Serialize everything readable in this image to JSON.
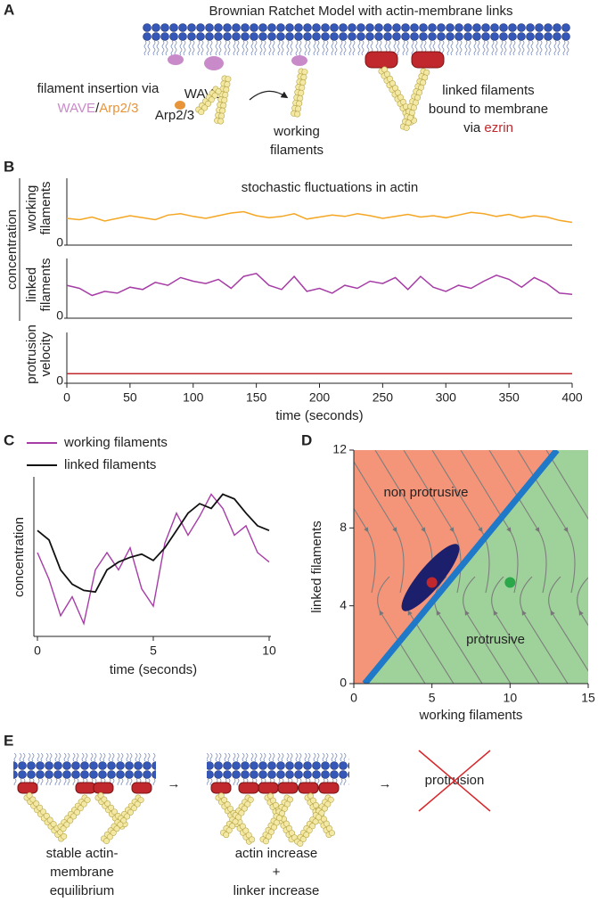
{
  "panel_labels": [
    "A",
    "B",
    "C",
    "D",
    "E"
  ],
  "panel_a": {
    "title": "Brownian Ratchet Model with actin-membrane links",
    "insertion_text": "filament insertion via",
    "insertion_wave": "WAVE",
    "insertion_sep": "/",
    "insertion_arp": "Arp2/3",
    "wave_label": "WAVE",
    "arp_label": "Arp2/3",
    "working_label": [
      "working",
      "filaments"
    ],
    "linked_label": [
      "linked filaments",
      "bound to membrane",
      "via"
    ],
    "ezrin": "ezrin"
  },
  "panel_b": {
    "title": "stochastic fluctuations in actin",
    "y_group_label": "concentration"
  },
  "chart_data": [
    {
      "type": "line",
      "ylabel": [
        "working",
        "filaments"
      ],
      "ylim": [
        0,
        1
      ],
      "yticks": [
        0
      ],
      "xlim": [
        0,
        400
      ],
      "x": [
        0,
        10,
        20,
        30,
        40,
        50,
        60,
        70,
        80,
        90,
        100,
        110,
        120,
        130,
        140,
        150,
        160,
        170,
        180,
        190,
        200,
        210,
        220,
        230,
        240,
        250,
        260,
        270,
        280,
        290,
        300,
        310,
        320,
        330,
        340,
        350,
        360,
        370,
        380,
        390,
        400
      ],
      "series": [
        {
          "color": "#f5a623",
          "values": [
            0.4,
            0.38,
            0.42,
            0.36,
            0.4,
            0.44,
            0.41,
            0.38,
            0.45,
            0.47,
            0.43,
            0.4,
            0.44,
            0.48,
            0.5,
            0.44,
            0.41,
            0.43,
            0.47,
            0.39,
            0.42,
            0.45,
            0.43,
            0.47,
            0.44,
            0.4,
            0.43,
            0.46,
            0.42,
            0.44,
            0.41,
            0.45,
            0.49,
            0.47,
            0.43,
            0.46,
            0.41,
            0.44,
            0.42,
            0.37,
            0.34
          ]
        }
      ]
    },
    {
      "type": "line",
      "ylabel": [
        "linked",
        "filaments"
      ],
      "ylim": [
        0,
        1
      ],
      "yticks": [
        0
      ],
      "xlim": [
        0,
        400
      ],
      "x": [
        0,
        10,
        20,
        30,
        40,
        50,
        60,
        70,
        80,
        90,
        100,
        110,
        120,
        130,
        140,
        150,
        160,
        170,
        180,
        190,
        200,
        210,
        220,
        230,
        240,
        250,
        260,
        270,
        280,
        290,
        300,
        310,
        320,
        330,
        340,
        350,
        360,
        370,
        380,
        390,
        400
      ],
      "series": [
        {
          "color": "#a63ca6",
          "values": [
            0.55,
            0.5,
            0.38,
            0.45,
            0.42,
            0.52,
            0.48,
            0.6,
            0.55,
            0.68,
            0.62,
            0.58,
            0.65,
            0.5,
            0.7,
            0.75,
            0.55,
            0.48,
            0.7,
            0.45,
            0.5,
            0.42,
            0.55,
            0.5,
            0.62,
            0.58,
            0.68,
            0.48,
            0.7,
            0.52,
            0.45,
            0.55,
            0.5,
            0.62,
            0.72,
            0.65,
            0.52,
            0.68,
            0.58,
            0.42,
            0.4
          ]
        }
      ]
    },
    {
      "type": "line",
      "ylabel": [
        "protrusion",
        "velocity"
      ],
      "ylim": [
        0,
        1
      ],
      "yticks": [
        0
      ],
      "xlim": [
        0,
        400
      ],
      "xticks": [
        0,
        50,
        100,
        150,
        200,
        250,
        300,
        350,
        400
      ],
      "xlabel": "time (seconds)",
      "x": [
        0,
        400
      ],
      "series": [
        {
          "color": "#c0282d",
          "values": [
            0.19,
            0.19
          ]
        }
      ]
    },
    {
      "type": "line",
      "xlabel": "time (seconds)",
      "ylabel": "concentration",
      "xlim": [
        0,
        10
      ],
      "xticks": [
        0,
        5,
        10
      ],
      "ylim": [
        0,
        1
      ],
      "x": [
        0,
        0.5,
        1,
        1.5,
        2,
        2.5,
        3,
        3.5,
        4,
        4.5,
        5,
        5.5,
        6,
        6.5,
        7,
        7.5,
        8,
        8.5,
        9,
        9.5,
        10
      ],
      "series": [
        {
          "name": "working filaments",
          "color": "#a63ca6",
          "values": [
            0.52,
            0.35,
            0.12,
            0.24,
            0.07,
            0.41,
            0.52,
            0.41,
            0.55,
            0.29,
            0.18,
            0.58,
            0.77,
            0.63,
            0.75,
            0.89,
            0.8,
            0.63,
            0.69,
            0.52,
            0.46
          ]
        },
        {
          "name": "linked filaments",
          "color": "#111111",
          "values": [
            0.66,
            0.6,
            0.41,
            0.32,
            0.28,
            0.27,
            0.41,
            0.46,
            0.49,
            0.51,
            0.47,
            0.55,
            0.66,
            0.77,
            0.83,
            0.8,
            0.89,
            0.86,
            0.77,
            0.69,
            0.66
          ]
        }
      ]
    },
    {
      "type": "phase",
      "xlabel": "working filaments",
      "ylabel": "linked filaments",
      "xlim": [
        0,
        15
      ],
      "ylim": [
        0,
        12
      ],
      "xticks": [
        0,
        5,
        10,
        15
      ],
      "yticks": [
        0,
        4,
        8,
        12
      ],
      "regions": [
        {
          "label": "non protrusive",
          "color": "#f4957a"
        },
        {
          "label": "protrusive",
          "color": "#9fd29a"
        }
      ],
      "boundary": {
        "x": [
          0.7,
          13
        ],
        "y": [
          0,
          12
        ],
        "color": "#1f78c8"
      },
      "points": [
        {
          "x": 5,
          "y": 5.2,
          "color": "#c0282d"
        },
        {
          "x": 10,
          "y": 5.2,
          "color": "#2ca84a"
        }
      ]
    }
  ],
  "panel_e": {
    "left_label": [
      "stable actin-",
      "membrane",
      "equilibrium"
    ],
    "mid_label": [
      "actin increase",
      "+",
      "linker increase"
    ],
    "right_label": "protrusion",
    "arrow": "→"
  }
}
